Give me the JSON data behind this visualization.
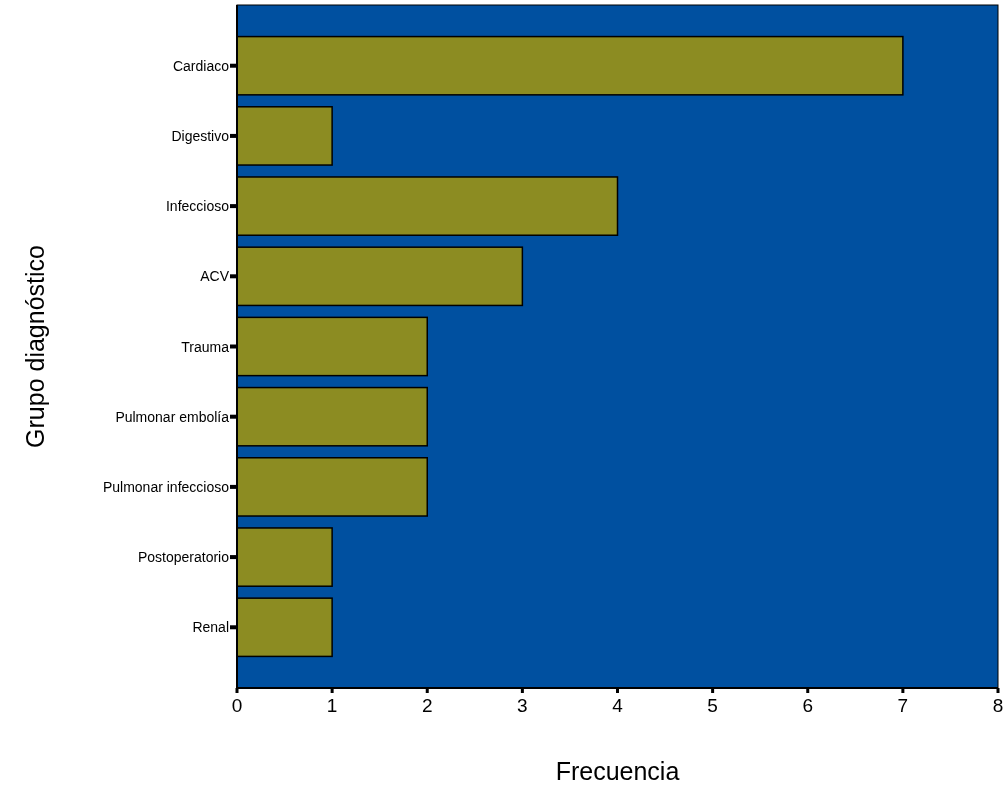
{
  "chart_data": {
    "type": "bar",
    "orientation": "horizontal",
    "xlabel": "Frecuencia",
    "ylabel": "Grupo diagnóstico",
    "categories": [
      "Cardiaco",
      "Digestivo",
      "Infeccioso",
      "ACV",
      "Trauma",
      "Pulmonar embolía",
      "Pulmonar infeccioso",
      "Postoperatorio",
      "Renal"
    ],
    "values": [
      7,
      1,
      4,
      3,
      2,
      2,
      2,
      1,
      1
    ],
    "color": "#8c8c22",
    "xlim": [
      0,
      8
    ],
    "xticks": [
      0,
      1,
      2,
      3,
      4,
      5,
      6,
      7,
      8
    ],
    "grid": false
  }
}
